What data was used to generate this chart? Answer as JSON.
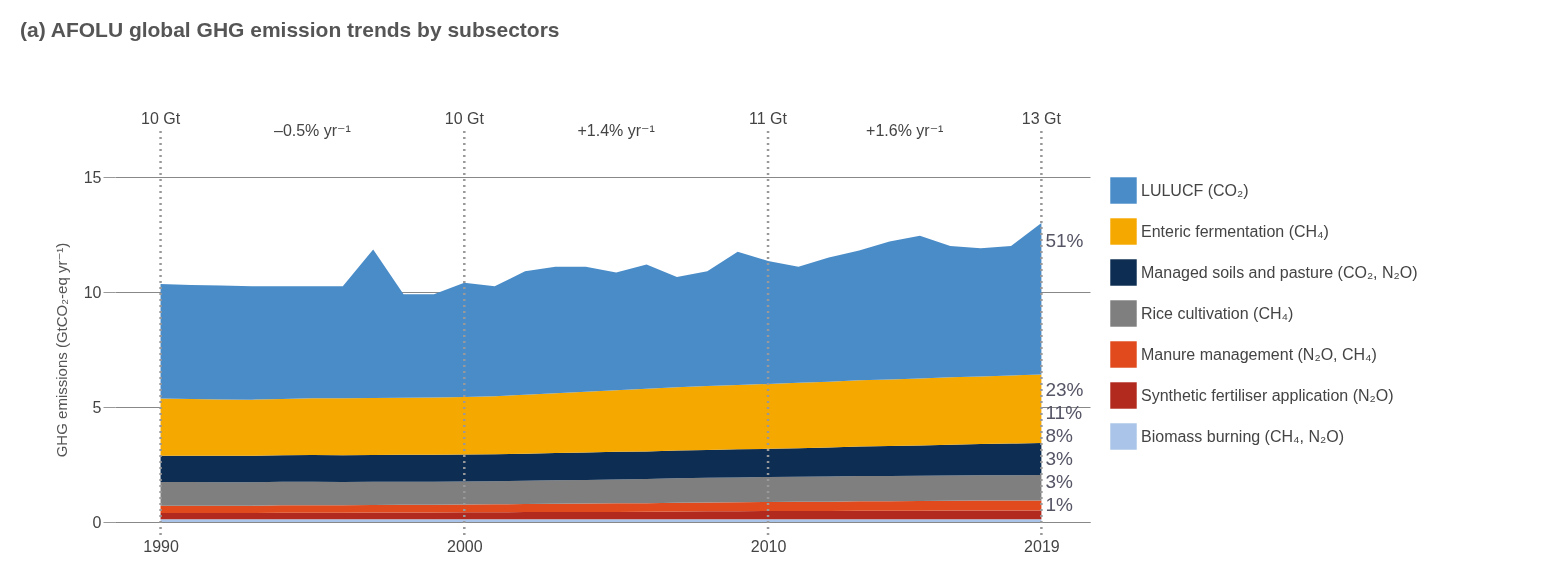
{
  "chart_data": {
    "type": "area",
    "stacked": true,
    "title": "(a) AFOLU global GHG emission trends by subsectors",
    "ylabel": "GHG emissions (GtCO₂-eq yr⁻¹)",
    "x": [
      1990,
      1991,
      1992,
      1993,
      1994,
      1995,
      1996,
      1997,
      1998,
      1999,
      2000,
      2001,
      2002,
      2003,
      2004,
      2005,
      2006,
      2007,
      2008,
      2009,
      2010,
      2011,
      2012,
      2013,
      2014,
      2015,
      2016,
      2017,
      2018,
      2019
    ],
    "xlim": [
      1988.5,
      2020.6
    ],
    "xticks": [
      1990,
      2000,
      2010,
      2019
    ],
    "ylim": [
      0,
      15
    ],
    "yticks": [
      0,
      5,
      10,
      15
    ],
    "grid": "y",
    "legend": "right",
    "series": [
      {
        "name": "Biomass burning (CH₄, N₂O)",
        "color": "#a9c4e8",
        "values": [
          0.12,
          0.12,
          0.12,
          0.12,
          0.12,
          0.12,
          0.12,
          0.12,
          0.12,
          0.12,
          0.12,
          0.12,
          0.12,
          0.12,
          0.12,
          0.12,
          0.12,
          0.12,
          0.12,
          0.12,
          0.12,
          0.12,
          0.12,
          0.12,
          0.12,
          0.12,
          0.12,
          0.12,
          0.12,
          0.12
        ]
      },
      {
        "name": "Synthetic fertiliser application (N₂O)",
        "color": "#b22a1e",
        "values": [
          0.27,
          0.27,
          0.27,
          0.27,
          0.28,
          0.28,
          0.28,
          0.29,
          0.29,
          0.29,
          0.3,
          0.3,
          0.31,
          0.31,
          0.32,
          0.32,
          0.33,
          0.34,
          0.35,
          0.35,
          0.36,
          0.36,
          0.36,
          0.37,
          0.37,
          0.37,
          0.38,
          0.38,
          0.38,
          0.38
        ]
      },
      {
        "name": "Manure management (N₂O, CH₄)",
        "color": "#e04a1c",
        "values": [
          0.32,
          0.32,
          0.32,
          0.32,
          0.33,
          0.33,
          0.33,
          0.33,
          0.34,
          0.34,
          0.34,
          0.35,
          0.35,
          0.36,
          0.36,
          0.37,
          0.37,
          0.38,
          0.38,
          0.39,
          0.39,
          0.4,
          0.4,
          0.41,
          0.41,
          0.42,
          0.42,
          0.43,
          0.43,
          0.44
        ]
      },
      {
        "name": "Rice cultivation (CH₄)",
        "color": "#7f7f7f",
        "values": [
          1.03,
          1.03,
          1.02,
          1.02,
          1.02,
          1.02,
          1.01,
          1.01,
          1.0,
          1.0,
          1.0,
          1.0,
          1.01,
          1.02,
          1.03,
          1.04,
          1.05,
          1.06,
          1.07,
          1.08,
          1.09,
          1.09,
          1.1,
          1.1,
          1.1,
          1.1,
          1.1,
          1.1,
          1.1,
          1.1
        ]
      },
      {
        "name": "Managed soils and pasture (CO₂, N₂O)",
        "color": "#0d2d52",
        "values": [
          1.14,
          1.14,
          1.15,
          1.15,
          1.15,
          1.16,
          1.16,
          1.16,
          1.17,
          1.17,
          1.18,
          1.18,
          1.18,
          1.19,
          1.19,
          1.2,
          1.2,
          1.21,
          1.21,
          1.22,
          1.22,
          1.24,
          1.26,
          1.28,
          1.3,
          1.32,
          1.34,
          1.36,
          1.38,
          1.4
        ]
      },
      {
        "name": "Enteric fermentation (CH₄)",
        "color": "#f5a800",
        "values": [
          2.49,
          2.47,
          2.45,
          2.44,
          2.45,
          2.47,
          2.48,
          2.48,
          2.48,
          2.49,
          2.49,
          2.52,
          2.56,
          2.6,
          2.64,
          2.68,
          2.72,
          2.75,
          2.78,
          2.8,
          2.82,
          2.84,
          2.86,
          2.88,
          2.9,
          2.91,
          2.93,
          2.94,
          2.96,
          2.97
        ]
      },
      {
        "name": "LULUCF (CO₂)",
        "color": "#4a8cc8",
        "values": [
          4.98,
          4.95,
          4.95,
          4.93,
          4.9,
          4.87,
          4.87,
          6.46,
          4.5,
          4.49,
          4.97,
          4.78,
          5.37,
          5.5,
          5.44,
          5.12,
          5.41,
          4.79,
          4.99,
          5.79,
          5.35,
          5.05,
          5.4,
          5.64,
          6.0,
          6.21,
          5.71,
          5.57,
          5.63,
          6.59
        ]
      }
    ],
    "ref_lines": [
      {
        "axis": "x",
        "value": 1990,
        "label": "10 Gt",
        "line_style": "dotted"
      },
      {
        "axis": "x",
        "value": 2000,
        "label": "10 Gt",
        "line_style": "dotted"
      },
      {
        "axis": "x",
        "value": 2010,
        "label": "11 Gt",
        "line_style": "dotted"
      },
      {
        "axis": "x",
        "value": 2019,
        "label": "13 Gt",
        "line_style": "dotted"
      }
    ],
    "annotations": [
      "–0.5% yr⁻¹",
      "+1.4% yr⁻¹",
      "+1.6% yr⁻¹",
      "51%",
      "23%",
      "11%",
      "8%",
      "3%",
      "3%",
      "1%"
    ]
  }
}
